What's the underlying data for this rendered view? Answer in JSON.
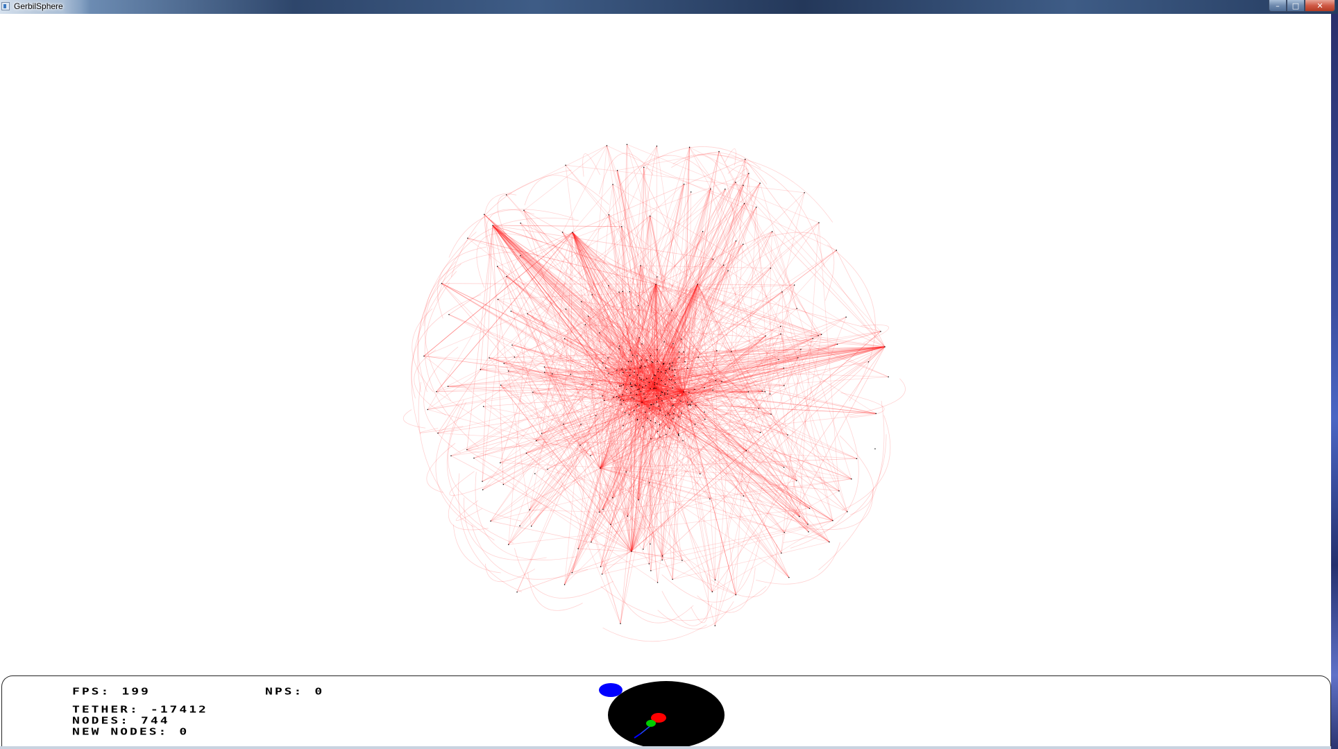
{
  "window": {
    "title": "GerbilSphere",
    "buttons": {
      "minimize": "–",
      "maximize": "□",
      "close": "✕"
    }
  },
  "colors": {
    "edge": "#ff2020",
    "node": "#000000",
    "hud_border": "#222222",
    "orient_disc": "#000000",
    "axis_blue": "#0000ff",
    "axis_red": "#ff0000",
    "axis_green": "#00cc00"
  },
  "hud": {
    "fps_label": "FPS:",
    "fps_value": "199",
    "nps_label": "NPS:",
    "nps_value": "0",
    "tether_label": "TETHER:",
    "tether_value": "-17412",
    "nodes_label": "NODES:",
    "nodes_value": "744",
    "new_nodes_label": "NEW NODES:",
    "new_nodes_value": "0"
  },
  "graph": {
    "description_icon": "network-graph",
    "node_count_shown": "744"
  }
}
